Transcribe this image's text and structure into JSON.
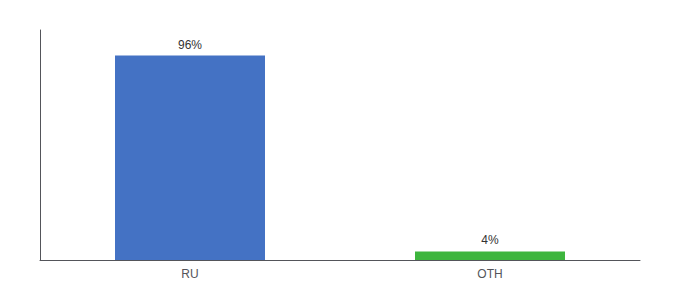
{
  "chart_data": {
    "type": "bar",
    "categories": [
      "RU",
      "OTH"
    ],
    "values": [
      96,
      4
    ],
    "value_labels": [
      "96%",
      "4%"
    ],
    "colors": [
      "#4472c4",
      "#3db53d"
    ],
    "ylim": [
      0,
      108
    ],
    "grid": false,
    "data_labels": true,
    "tick_labels": "x"
  }
}
